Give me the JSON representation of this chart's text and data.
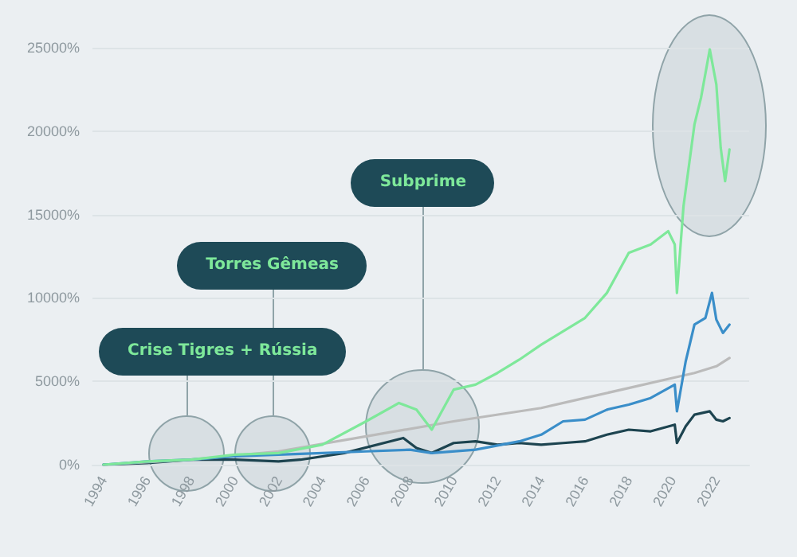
{
  "chart_data": {
    "type": "line",
    "series": [
      {
        "color": "#1d4450",
        "x": [
          1994,
          1996,
          1998,
          2000,
          2002,
          2003,
          2005,
          2007.7,
          2008.3,
          2009,
          2010,
          2011,
          2012,
          2013,
          2014,
          2015,
          2016,
          2017,
          2018,
          2019,
          2020.1,
          2020.2,
          2020.6,
          2021,
          2021.7,
          2022,
          2022.3,
          2022.6
        ],
        "values": [
          0,
          100,
          300,
          300,
          200,
          300,
          700,
          1600,
          1000,
          700,
          1300,
          1400,
          1200,
          1300,
          1200,
          1300,
          1400,
          1800,
          2100,
          2000,
          2400,
          1300,
          2300,
          3000,
          3200,
          2700,
          2600,
          2800
        ]
      },
      {
        "color": "#bbbbbb",
        "x": [
          1994,
          1998,
          2002,
          2006,
          2010,
          2014,
          2016,
          2018,
          2020,
          2021,
          2022,
          2022.6
        ],
        "values": [
          0,
          300,
          800,
          1700,
          2600,
          3400,
          4000,
          4600,
          5200,
          5500,
          5900,
          6400
        ]
      },
      {
        "color": "#3a8ec9",
        "x": [
          1994,
          1996,
          1998,
          2000,
          2002,
          2004,
          2006,
          2008,
          2009,
          2011,
          2013,
          2014,
          2015,
          2016,
          2017,
          2018,
          2019,
          2020.1,
          2020.2,
          2020.6,
          2021,
          2021.5,
          2021.8,
          2022,
          2022.3,
          2022.6
        ],
        "values": [
          0,
          200,
          300,
          500,
          600,
          700,
          800,
          900,
          700,
          900,
          1400,
          1800,
          2600,
          2700,
          3300,
          3600,
          4000,
          4800,
          3200,
          6200,
          8400,
          8800,
          10300,
          8700,
          7900,
          8400
        ]
      },
      {
        "color": "#7ee89a",
        "x": [
          1994,
          1996,
          1998,
          2000,
          2002,
          2004,
          2006,
          2007.5,
          2008.3,
          2009,
          2010,
          2011,
          2012,
          2013,
          2014,
          2015,
          2016,
          2017,
          2018,
          2019,
          2019.8,
          2020.1,
          2020.2,
          2020.5,
          2021,
          2021.3,
          2021.7,
          2022,
          2022.2,
          2022.4,
          2022.6
        ],
        "values": [
          0,
          200,
          300,
          600,
          700,
          1200,
          2600,
          3700,
          3300,
          2100,
          4500,
          4800,
          5500,
          6300,
          7200,
          8000,
          8800,
          10300,
          12700,
          13200,
          14000,
          13200,
          10300,
          15500,
          20400,
          22000,
          24900,
          22800,
          19000,
          17000,
          18900
        ]
      }
    ],
    "xlim": [
      1993.5,
      2023.5
    ],
    "xticks": [
      1994,
      1996,
      1998,
      2000,
      2002,
      2004,
      2006,
      2008,
      2010,
      2012,
      2014,
      2016,
      2018,
      2020,
      2022
    ],
    "ylim": [
      0,
      25000
    ],
    "yticks": [
      {
        "value": 0,
        "label": "0%"
      },
      {
        "value": 5000,
        "label": "5000%"
      },
      {
        "value": 10000,
        "label": "10000%"
      },
      {
        "value": 15000,
        "label": "15000%"
      },
      {
        "value": 20000,
        "label": "20000%"
      },
      {
        "value": 25000,
        "label": "25000%"
      }
    ],
    "grid": "y",
    "marker": "none",
    "line_style": "solid",
    "annotations": [
      "Crise Tigres + Rússia",
      "Torres Gêmeas",
      "Subprime"
    ]
  }
}
